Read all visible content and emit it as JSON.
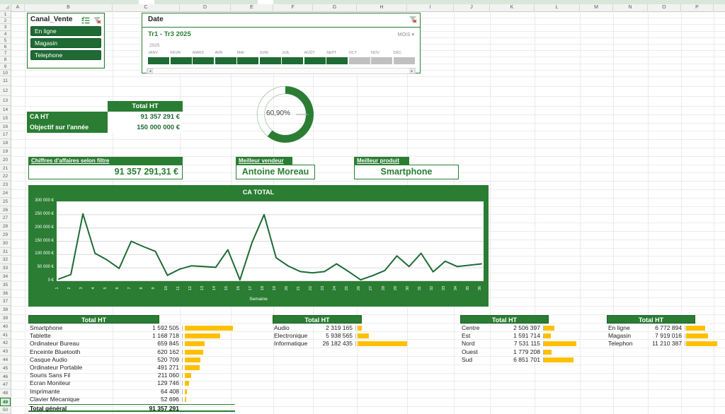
{
  "colors": {
    "green": "#2a7d33",
    "dark_green": "#1e6b34",
    "bar_yellow": "#ffc000",
    "timeline_unselected": "#c0c0c0",
    "grid": "#d9d9d9"
  },
  "spreadsheet": {
    "column_letters": [
      "A",
      "B",
      "C",
      "D",
      "E",
      "F",
      "G",
      "H",
      "I",
      "J",
      "K",
      "L",
      "M",
      "N",
      "O",
      "P"
    ],
    "visible_rows": 50,
    "selected_row_number": "49"
  },
  "slicer": {
    "title": "Canal_Vente",
    "buttons": [
      "En ligne",
      "Magasin",
      "Telephone"
    ]
  },
  "timeline": {
    "title": "Date",
    "range_label": "Tr1 - Tr3 2025",
    "granularity_label": "MOIS",
    "year_label": "2025",
    "months": [
      "JANV",
      "FÉVR",
      "MARS",
      "AVR",
      "MAI",
      "JUIN",
      "JUIL",
      "AOÛT",
      "SEPT",
      "OCT",
      "NOV",
      "DÉC"
    ],
    "selected_months_count": 9
  },
  "kpi": {
    "header": "Total HT",
    "rows": [
      {
        "label": "CA HT",
        "value": "91 357 291 €"
      },
      {
        "label": "Objectif sur l'année",
        "value": "150 000 000 €"
      }
    ]
  },
  "donut": {
    "percent": 60.9,
    "display": "60,90%"
  },
  "cards": [
    {
      "title": "Chiffres d'affaires selon filtre",
      "value": "91 357 291,31 €"
    },
    {
      "title": "Meilleur vendeur",
      "value": "Antoine Moreau"
    },
    {
      "title": "Meilleur produit",
      "value": "Smartphone"
    }
  ],
  "chart_data": {
    "type": "line",
    "title": "CA TOTAL",
    "xlabel": "Semaine",
    "ylabel": "",
    "x": [
      1,
      2,
      3,
      4,
      5,
      6,
      7,
      8,
      9,
      10,
      11,
      12,
      13,
      14,
      15,
      16,
      17,
      18,
      19,
      20,
      21,
      22,
      23,
      24,
      25,
      26,
      27,
      28,
      29,
      30,
      31,
      32,
      33,
      34,
      35,
      36
    ],
    "values": [
      8000,
      25000,
      253000,
      105000,
      80000,
      48000,
      150000,
      130000,
      112000,
      22000,
      45000,
      58000,
      55000,
      52000,
      118000,
      5000,
      145000,
      250000,
      88000,
      57000,
      36000,
      31000,
      36000,
      65000,
      36000,
      5000,
      21000,
      40000,
      95000,
      55000,
      105000,
      35000,
      75000,
      55000,
      60000,
      65000
    ],
    "ylim": [
      0,
      300000
    ],
    "ytick_labels": [
      "0 €",
      "50 000 €",
      "100 000 €",
      "150 000 €",
      "200 000 €",
      "250 000 €",
      "300 000 €"
    ],
    "grid": true,
    "legend": false
  },
  "tables": [
    {
      "id": "products",
      "header": "Total HT",
      "rows": [
        {
          "label": "Smartphone",
          "value": 1592505,
          "display": "1 592 505"
        },
        {
          "label": "Tablette",
          "value": 1168718,
          "display": "1 168 718"
        },
        {
          "label": "Ordinateur Bureau",
          "value": 659845,
          "display": "659 845"
        },
        {
          "label": "Enceinte Bluetooth",
          "value": 620162,
          "display": "620 162"
        },
        {
          "label": "Casque Audio",
          "value": 520709,
          "display": "520 709"
        },
        {
          "label": "Ordinateur Portable",
          "value": 491271,
          "display": "491 271"
        },
        {
          "label": "Souris Sans Fil",
          "value": 211060,
          "display": "211 060"
        },
        {
          "label": "Ecran Moniteur",
          "value": 129746,
          "display": "129 746"
        },
        {
          "label": "Imprimante",
          "value": 64408,
          "display": "64 408"
        },
        {
          "label": "Clavier Mecanique",
          "value": 52696,
          "display": "52 696"
        }
      ],
      "total": {
        "label": "Total général",
        "display": "91 357 291"
      }
    },
    {
      "id": "categories",
      "header": "Total HT",
      "rows": [
        {
          "label": "Audio",
          "value": 2319165,
          "display": "2 319 165"
        },
        {
          "label": "Electronique",
          "value": 5938565,
          "display": "5 938 565"
        },
        {
          "label": "Informatique",
          "value": 26182435,
          "display": "26 182 435"
        }
      ]
    },
    {
      "id": "regions",
      "header": "Total HT",
      "rows": [
        {
          "label": "Centre",
          "value": 2506397,
          "display": "2 506 397"
        },
        {
          "label": "Est",
          "value": 1591714,
          "display": "1 591 714"
        },
        {
          "label": "Nord",
          "value": 7531115,
          "display": "7 531 115"
        },
        {
          "label": "Ouest",
          "value": 1779208,
          "display": "1 779 208"
        },
        {
          "label": "Sud",
          "value": 6851701,
          "display": "6 851 701"
        }
      ]
    },
    {
      "id": "channels",
      "header": "Total HT",
      "rows": [
        {
          "label": "En ligne",
          "value": 6772894,
          "display": "6 772 894"
        },
        {
          "label": "Magasin",
          "value": 7919016,
          "display": "7 919 016"
        },
        {
          "label": "Telephon",
          "value": 11210387,
          "display": "11 210 387"
        }
      ]
    }
  ]
}
